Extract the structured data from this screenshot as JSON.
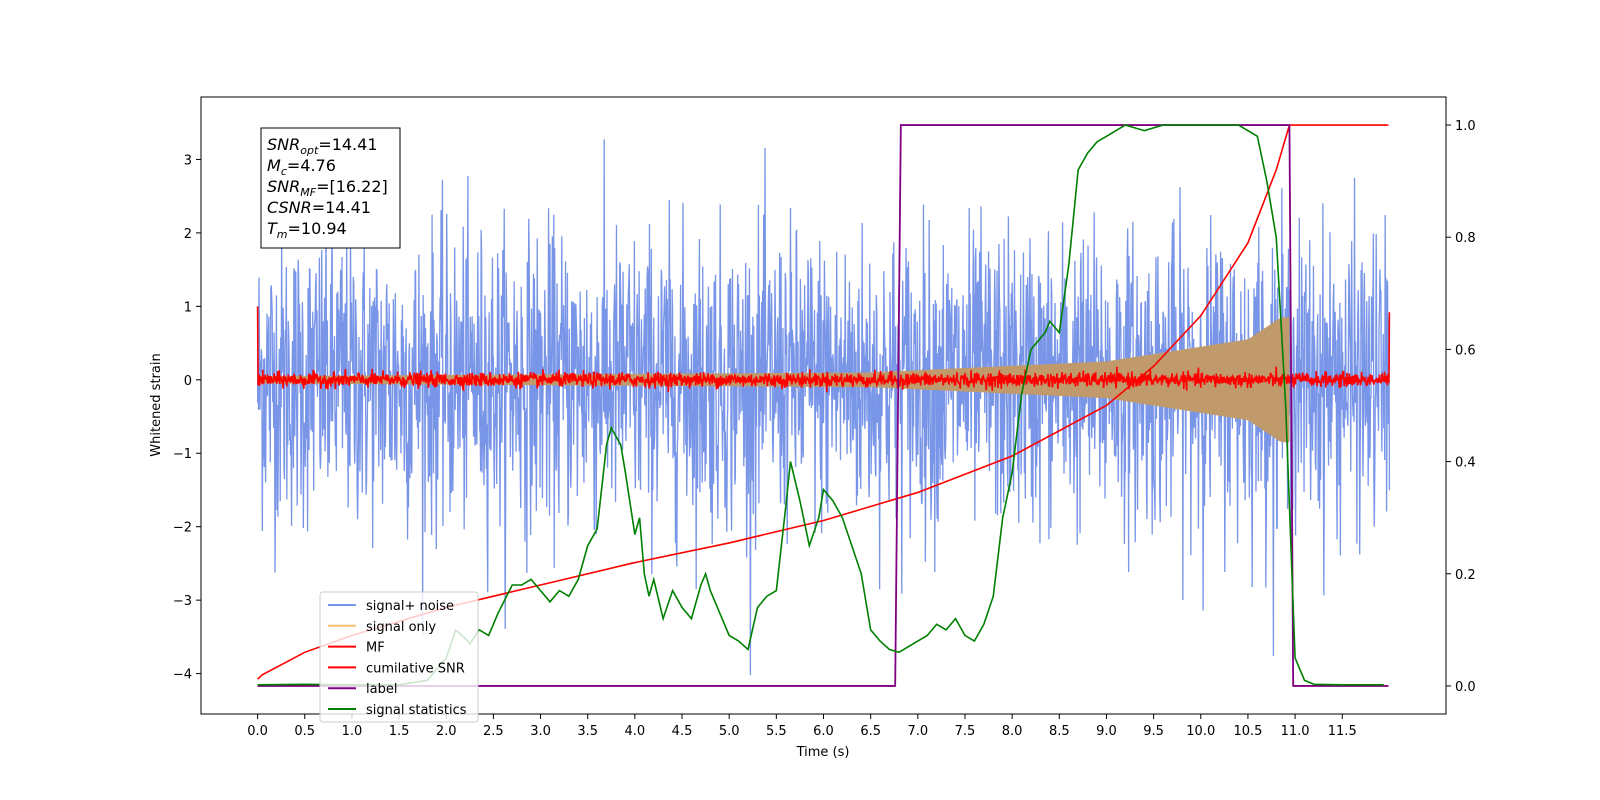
{
  "chart_data": {
    "type": "line",
    "xlabel": "Time (s)",
    "ylabel": "Whitened strain",
    "xlim": [
      -0.6,
      12.6
    ],
    "ylim": [
      -4.55,
      3.85
    ],
    "y2lim": [
      -0.05,
      1.05
    ],
    "x_ticks": [
      "0.0",
      "0.5",
      "1.0",
      "1.5",
      "2.0",
      "2.5",
      "3.0",
      "3.5",
      "4.0",
      "4.5",
      "5.0",
      "5.5",
      "6.0",
      "6.5",
      "7.0",
      "7.5",
      "8.0",
      "8.5",
      "9.0",
      "9.5",
      "10.0",
      "10.5",
      "11.0",
      "11.5"
    ],
    "y_ticks": [
      "3",
      "2",
      "1",
      "0",
      "−1",
      "−2",
      "−3",
      "−4"
    ],
    "y2_ticks": [
      "1.0",
      "0.8",
      "0.6",
      "0.4",
      "0.2",
      "0.0"
    ],
    "annotation": {
      "lines": [
        {
          "sym": "SNR",
          "sub": "opt",
          "value": "=14.41"
        },
        {
          "sym": "M",
          "sub": "c",
          "value": "=4.76"
        },
        {
          "sym": "SNR",
          "sub": "MF",
          "value": "=[16.22]"
        },
        {
          "sym": "CSNR",
          "sub": "",
          "value": "=14.41"
        },
        {
          "sym": "T",
          "sub": "m",
          "value": "=10.94"
        }
      ]
    },
    "legend_position": "lower-left",
    "series": [
      {
        "name": "signal+ noise",
        "color": "#7895e8",
        "axis": "left",
        "style": "noise",
        "x_range": [
          0,
          12
        ],
        "amplitude_sigma": 1.0
      },
      {
        "name": "signal only",
        "color": "#f5c36e",
        "axis": "left",
        "style": "chirp",
        "x_range": [
          0,
          10.94
        ],
        "envelope": [
          [
            0,
            0.05
          ],
          [
            6.5,
            0.1
          ],
          [
            9,
            0.25
          ],
          [
            10.5,
            0.55
          ],
          [
            10.85,
            0.85
          ]
        ]
      },
      {
        "name": "MF",
        "color": "#ff0000",
        "axis": "left",
        "style": "noise",
        "x_range": [
          0,
          12
        ],
        "amplitude_sigma": 0.05
      },
      {
        "name": "cumilative SNR",
        "color": "#ff0000",
        "axis": "right",
        "x": [
          0,
          0.05,
          0.5,
          1,
          2,
          3,
          4,
          5,
          6,
          7,
          8,
          9,
          9.5,
          10,
          10.5,
          10.8,
          10.94,
          11.99
        ],
        "y": [
          0.012,
          0.02,
          0.06,
          0.09,
          0.14,
          0.18,
          0.22,
          0.255,
          0.295,
          0.345,
          0.41,
          0.5,
          0.57,
          0.66,
          0.79,
          0.92,
          1.0,
          1.0
        ]
      },
      {
        "name": "label",
        "color": "#800080",
        "axis": "right",
        "x": [
          0,
          6.76,
          6.82,
          10.94,
          10.98,
          11.99
        ],
        "y": [
          0.0,
          0.0,
          1.0,
          1.0,
          0.0,
          0.0
        ]
      },
      {
        "name": "signal statistics",
        "color": "#008000",
        "axis": "right",
        "x": [
          0,
          0.5,
          1,
          1.5,
          1.8,
          2.0,
          2.1,
          2.2,
          2.25,
          2.35,
          2.45,
          2.55,
          2.7,
          2.8,
          2.9,
          3.0,
          3.1,
          3.2,
          3.3,
          3.4,
          3.5,
          3.6,
          3.7,
          3.75,
          3.85,
          3.9,
          4.0,
          4.05,
          4.1,
          4.15,
          4.2,
          4.3,
          4.4,
          4.5,
          4.6,
          4.7,
          4.75,
          4.8,
          4.9,
          5.0,
          5.1,
          5.2,
          5.3,
          5.4,
          5.5,
          5.6,
          5.65,
          5.75,
          5.85,
          5.95,
          6.0,
          6.1,
          6.2,
          6.3,
          6.4,
          6.5,
          6.6,
          6.7,
          6.8,
          6.9,
          7.0,
          7.1,
          7.2,
          7.3,
          7.4,
          7.5,
          7.6,
          7.7,
          7.8,
          7.9,
          8.0,
          8.1,
          8.2,
          8.3,
          8.35,
          8.4,
          8.5,
          8.6,
          8.7,
          8.8,
          8.9,
          9.0,
          9.2,
          9.4,
          9.6,
          9.8,
          10.0,
          10.2,
          10.4,
          10.6,
          10.7,
          10.8,
          10.9,
          11.0,
          11.1,
          11.2,
          11.5,
          11.94
        ],
        "y": [
          0.002,
          0.003,
          0.002,
          0.002,
          0.01,
          0.05,
          0.1,
          0.085,
          0.075,
          0.1,
          0.09,
          0.13,
          0.18,
          0.18,
          0.19,
          0.17,
          0.15,
          0.17,
          0.16,
          0.19,
          0.25,
          0.28,
          0.43,
          0.46,
          0.43,
          0.38,
          0.27,
          0.3,
          0.2,
          0.16,
          0.19,
          0.12,
          0.17,
          0.14,
          0.12,
          0.18,
          0.2,
          0.17,
          0.13,
          0.09,
          0.08,
          0.065,
          0.14,
          0.16,
          0.17,
          0.32,
          0.4,
          0.33,
          0.25,
          0.3,
          0.35,
          0.33,
          0.3,
          0.25,
          0.2,
          0.1,
          0.08,
          0.065,
          0.06,
          0.07,
          0.08,
          0.09,
          0.11,
          0.1,
          0.12,
          0.09,
          0.08,
          0.11,
          0.16,
          0.3,
          0.38,
          0.52,
          0.6,
          0.62,
          0.63,
          0.65,
          0.63,
          0.75,
          0.92,
          0.95,
          0.97,
          0.98,
          1.0,
          0.99,
          1.0,
          1.0,
          1.0,
          1.0,
          1.0,
          0.98,
          0.9,
          0.8,
          0.5,
          0.05,
          0.01,
          0.003,
          0.002,
          0.002
        ]
      }
    ]
  }
}
